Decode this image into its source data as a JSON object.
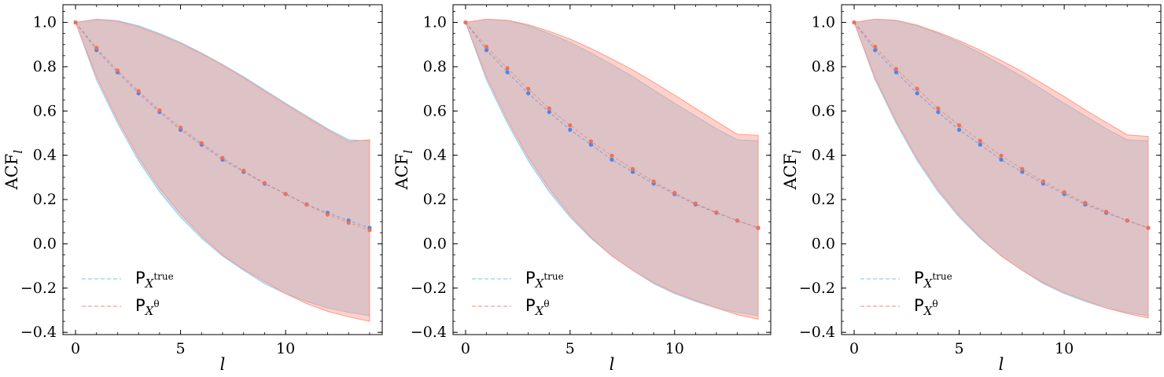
{
  "colors": {
    "true": "#4a86e8",
    "theta": "#f0705a",
    "true_fill": "#8ecdf2",
    "theta_fill": "#ff9a8a"
  },
  "chart_data": [
    {
      "type": "line",
      "xlabel": "l",
      "ylabel": "ACF",
      "ylabel_sub": "l",
      "xlim": [
        -0.6,
        14.6
      ],
      "ylim": [
        -0.41,
        1.08
      ],
      "xticks": [
        0,
        5,
        10
      ],
      "yticks": [
        -0.4,
        -0.2,
        0.0,
        0.2,
        0.4,
        0.6,
        0.8,
        1.0
      ],
      "x": [
        0,
        1,
        2,
        3,
        4,
        5,
        6,
        7,
        8,
        9,
        10,
        11,
        12,
        13,
        14
      ],
      "legend_position": "lower-left",
      "series": [
        {
          "key": "true",
          "name": "P",
          "name_sub": "X",
          "name_sup": "true",
          "mean": [
            1.0,
            0.875,
            0.775,
            0.68,
            0.595,
            0.515,
            0.448,
            0.38,
            0.325,
            0.272,
            0.225,
            0.178,
            0.14,
            0.105,
            0.072
          ],
          "upper": [
            1.0,
            1.015,
            1.008,
            0.985,
            0.95,
            0.91,
            0.862,
            0.81,
            0.755,
            0.695,
            0.635,
            0.578,
            0.52,
            0.47,
            0.465
          ],
          "lower": [
            1.0,
            0.74,
            0.545,
            0.375,
            0.235,
            0.12,
            0.025,
            -0.055,
            -0.12,
            -0.18,
            -0.225,
            -0.26,
            -0.29,
            -0.31,
            -0.325
          ]
        },
        {
          "key": "theta",
          "name": "P",
          "name_sub": "X",
          "name_sup": "θ",
          "mean": [
            1.0,
            0.885,
            0.783,
            0.69,
            0.603,
            0.525,
            0.455,
            0.388,
            0.33,
            0.275,
            0.225,
            0.177,
            0.132,
            0.095,
            0.062
          ],
          "upper": [
            1.0,
            1.013,
            1.005,
            0.98,
            0.945,
            0.905,
            0.858,
            0.808,
            0.75,
            0.69,
            0.63,
            0.572,
            0.515,
            0.462,
            0.47
          ],
          "lower": [
            1.0,
            0.755,
            0.56,
            0.39,
            0.25,
            0.135,
            0.035,
            -0.05,
            -0.115,
            -0.17,
            -0.225,
            -0.27,
            -0.305,
            -0.33,
            -0.35
          ]
        }
      ]
    },
    {
      "type": "line",
      "xlabel": "l",
      "ylabel": "ACF",
      "ylabel_sub": "l",
      "xlim": [
        -0.6,
        14.6
      ],
      "ylim": [
        -0.41,
        1.08
      ],
      "xticks": [
        0,
        5,
        10
      ],
      "yticks": [
        -0.4,
        -0.2,
        0.0,
        0.2,
        0.4,
        0.6,
        0.8,
        1.0
      ],
      "x": [
        0,
        1,
        2,
        3,
        4,
        5,
        6,
        7,
        8,
        9,
        10,
        11,
        12,
        13,
        14
      ],
      "legend_position": "lower-left",
      "series": [
        {
          "key": "true",
          "name": "P",
          "name_sub": "X",
          "name_sup": "true",
          "mean": [
            1.0,
            0.875,
            0.775,
            0.68,
            0.595,
            0.515,
            0.448,
            0.38,
            0.325,
            0.272,
            0.225,
            0.178,
            0.14,
            0.105,
            0.072
          ],
          "upper": [
            1.0,
            1.015,
            1.008,
            0.985,
            0.95,
            0.91,
            0.862,
            0.81,
            0.755,
            0.695,
            0.635,
            0.578,
            0.52,
            0.47,
            0.465
          ],
          "lower": [
            1.0,
            0.74,
            0.545,
            0.375,
            0.235,
            0.12,
            0.025,
            -0.055,
            -0.12,
            -0.18,
            -0.225,
            -0.26,
            -0.29,
            -0.31,
            -0.325
          ]
        },
        {
          "key": "theta",
          "name": "P",
          "name_sub": "X",
          "name_sup": "θ",
          "mean": [
            1.0,
            0.89,
            0.793,
            0.7,
            0.612,
            0.535,
            0.463,
            0.398,
            0.338,
            0.282,
            0.23,
            0.182,
            0.142,
            0.105,
            0.072
          ],
          "upper": [
            1.0,
            1.015,
            1.01,
            0.99,
            0.96,
            0.925,
            0.882,
            0.835,
            0.785,
            0.73,
            0.672,
            0.612,
            0.553,
            0.495,
            0.49
          ],
          "lower": [
            1.0,
            0.755,
            0.56,
            0.39,
            0.25,
            0.13,
            0.03,
            -0.055,
            -0.12,
            -0.175,
            -0.22,
            -0.255,
            -0.29,
            -0.32,
            -0.34
          ]
        }
      ]
    },
    {
      "type": "line",
      "xlabel": "l",
      "ylabel": "ACF",
      "ylabel_sub": "l",
      "xlim": [
        -0.6,
        14.6
      ],
      "ylim": [
        -0.41,
        1.08
      ],
      "xticks": [
        0,
        5,
        10
      ],
      "yticks": [
        -0.4,
        -0.2,
        0.0,
        0.2,
        0.4,
        0.6,
        0.8,
        1.0
      ],
      "x": [
        0,
        1,
        2,
        3,
        4,
        5,
        6,
        7,
        8,
        9,
        10,
        11,
        12,
        13,
        14
      ],
      "legend_position": "lower-left",
      "series": [
        {
          "key": "true",
          "name": "P",
          "name_sub": "X",
          "name_sup": "true",
          "mean": [
            1.0,
            0.875,
            0.775,
            0.68,
            0.595,
            0.515,
            0.448,
            0.38,
            0.325,
            0.272,
            0.225,
            0.178,
            0.14,
            0.105,
            0.072
          ],
          "upper": [
            1.0,
            1.015,
            1.008,
            0.985,
            0.95,
            0.91,
            0.862,
            0.81,
            0.755,
            0.695,
            0.635,
            0.578,
            0.52,
            0.47,
            0.465
          ],
          "lower": [
            1.0,
            0.74,
            0.545,
            0.375,
            0.235,
            0.12,
            0.025,
            -0.055,
            -0.12,
            -0.18,
            -0.225,
            -0.26,
            -0.29,
            -0.31,
            -0.325
          ]
        },
        {
          "key": "theta",
          "name": "P",
          "name_sub": "X",
          "name_sup": "θ",
          "mean": [
            1.0,
            0.89,
            0.79,
            0.7,
            0.612,
            0.535,
            0.465,
            0.398,
            0.338,
            0.282,
            0.233,
            0.185,
            0.145,
            0.105,
            0.072
          ],
          "upper": [
            1.0,
            1.015,
            1.01,
            0.988,
            0.955,
            0.918,
            0.875,
            0.828,
            0.778,
            0.722,
            0.665,
            0.605,
            0.548,
            0.492,
            0.485
          ],
          "lower": [
            1.0,
            0.75,
            0.555,
            0.385,
            0.245,
            0.128,
            0.03,
            -0.055,
            -0.12,
            -0.175,
            -0.22,
            -0.255,
            -0.29,
            -0.315,
            -0.335
          ]
        }
      ]
    }
  ]
}
